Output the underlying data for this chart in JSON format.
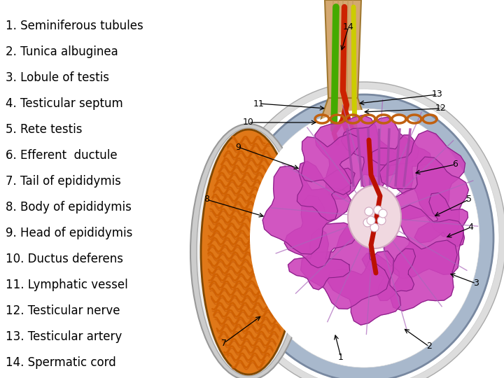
{
  "bg_color": "#ffffff",
  "text_color": "#000000",
  "label_list": [
    "1. Seminiferous tubules",
    "2. Tunica albuginea",
    "3. Lobule of testis",
    "4. Testicular septum",
    "5. Rete testis",
    "6. Efferent  ductule",
    "7. Tail of epididymis",
    "8. Body of epididymis",
    "9. Head of epididymis",
    "10. Ductus deferens",
    "11. Lymphatic vessel",
    "12. Testicular nerve",
    "13. Testicular artery",
    "14. Spermatic cord"
  ],
  "font_size": 12,
  "cord_color": "#D4A870",
  "cord_edge": "#A07830",
  "tunica_color": "#A8B8CC",
  "tunica_edge": "#7888A0",
  "epid_color": "#C87010",
  "epid_edge": "#804800",
  "purple": "#CC44BB",
  "dark_purple": "#882288",
  "green_vessel": "#44AA00",
  "yellow_nerve": "#CCCC00",
  "red_artery": "#CC2200",
  "septa_color": "#AA66BB"
}
